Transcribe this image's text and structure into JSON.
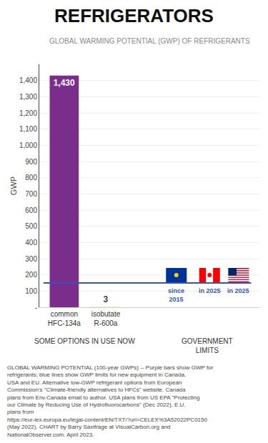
{
  "chart_data": {
    "type": "bar",
    "title": "REFRIGERATORS",
    "subtitle": "GLOBAL WARMING POTENTIAL (GWP) OF REFRIGERANTS",
    "ylabel": "GWP",
    "categories": [
      "common\nHFC-134a",
      "isobutate\nR-600a"
    ],
    "values": [
      1430,
      3
    ],
    "value_labels": [
      "1,430",
      "3"
    ],
    "colors": [
      "#7B2D8B",
      "#F5F0A0"
    ],
    "data_labels": true,
    "ylim": [
      0,
      1500
    ],
    "yticks": [
      {
        "value": 0,
        "label": "-"
      },
      100,
      200,
      300,
      400,
      500,
      600,
      700,
      800,
      900,
      {
        "value": 1000,
        "label": "1,000"
      },
      {
        "value": 1100,
        "label": "1,100"
      },
      {
        "value": 1200,
        "label": "1,200"
      },
      {
        "value": 1300,
        "label": "1,300"
      },
      {
        "value": 1400,
        "label": "1,400"
      }
    ],
    "grid": true,
    "limit_line": {
      "value": 150,
      "color": "#3355BB",
      "labels": [
        "since\n2015",
        "in 2025",
        "in 2025"
      ]
    },
    "section_labels": [
      "SOME OPTIONS IN USE NOW",
      "GOVERNMENT\nLIMITS"
    ],
    "footnote": "GLOBAL WARMING POTENTIAL (100-year GWPs) -- Purple bars show GWP for refrigerants; blue lines show GWP limits for new equipment in Canada, USA and EU. Alternative low-GWP refrigerant options from European Commission's \"Climate-friendly alternatives to HFCs\" website. Canada plans from Env.Canada email to author. USA plans from US EPA \"Protecting our Climate by Reducing Use of Hydrofluorocarbons\" (Dec 2022). E.U. plans from https://eur-lex.europa.eu/legal-content/EN/TXT/?uri=CELEX%3A52022PC0150 (May 2022). CHART by Barry Saxifrage at VisualCarbon.org and NationalObserver.com. April 2023."
  }
}
